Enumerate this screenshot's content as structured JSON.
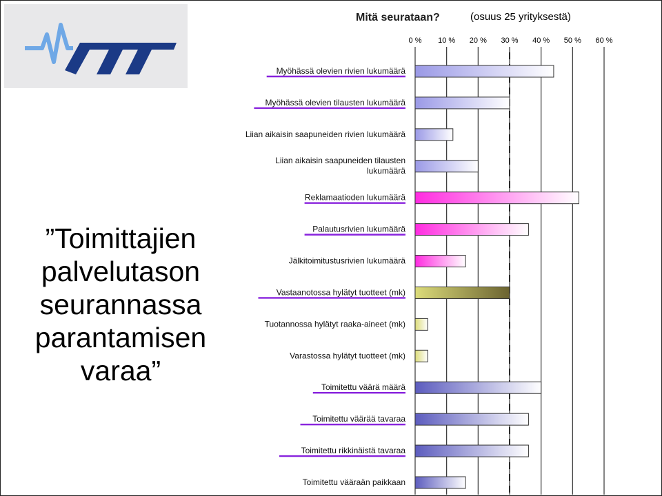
{
  "slide": {
    "title_lines": [
      "”Toimittajien",
      "palvelutason",
      "seurannassa",
      "parantamisen",
      "varaa”"
    ]
  },
  "logo": {
    "text": "VTT"
  },
  "chart_data": {
    "type": "bar",
    "orientation": "horizontal",
    "title": "Mitä seurataan?",
    "subtitle": "(osuus 25 yrityksestä)",
    "xlim": [
      0,
      60
    ],
    "xticks": [
      "0 %",
      "10 %",
      "20 %",
      "30 %",
      "40 %",
      "50 %",
      "60 %"
    ],
    "reference_line": 30,
    "grid": true,
    "categories": [
      "Myöhässä olevien rivien lukumäärä",
      "Myöhässä olevien tilausten lukumäärä",
      "Liian aikaisin saapuneiden rivien lukumäärä",
      "Liian aikaisin saapuneiden tilausten lukumäärä",
      "Reklamaatioden lukumäärä",
      "Palautusrivien lukumäärä",
      "Jälkitoimitustusrivien lukumäärä",
      "Vastaanotossa hylätyt tuotteet (mk)",
      "Tuotannossa hylätyt raaka-aineet (mk)",
      "Varastossa hylätyt tuotteet (mk)",
      "Toimitettu väärä määrä",
      "Toimitettu väärää tavaraa",
      "Toimitettu rikkinäistä tavaraa",
      "Toimitettu vääraän paikkaan"
    ],
    "values": [
      44,
      30,
      12,
      20,
      52,
      36,
      16,
      30,
      4,
      4,
      40,
      36,
      36,
      16
    ],
    "underlined": [
      true,
      true,
      false,
      false,
      true,
      true,
      false,
      true,
      false,
      false,
      true,
      true,
      true,
      false
    ],
    "bar_colors": [
      "#9a99e6",
      "#9a99e6",
      "#9a99e6",
      "#9a99e6",
      "#ff2be0",
      "#ff2be0",
      "#ff2be0",
      "#dcdc7a",
      "#dcdc7a",
      "#dcdc7a",
      "#5c5cbe",
      "#5c5cbe",
      "#5c5cbe",
      "#5c5cbe"
    ],
    "bar_end_colors": [
      "#ffffff",
      "#ffffff",
      "#ffffff",
      "#ffffff",
      "#ffffff",
      "#ffffff",
      "#ffffff",
      "#6b6330",
      "#ffffff",
      "#ffffff",
      "#ffffff",
      "#ffffff",
      "#ffffff",
      "#ffffff"
    ],
    "underline_color": "#8822dd"
  }
}
